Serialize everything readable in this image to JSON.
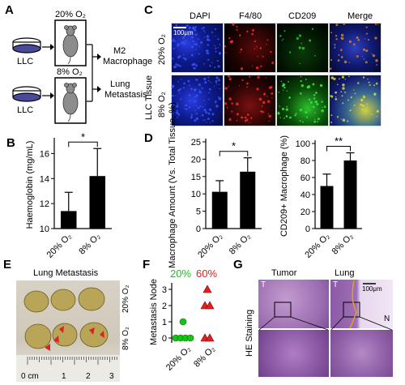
{
  "panels": {
    "A": {
      "letter": "A",
      "cell_label": "LLC",
      "o2_top": "20% O₂",
      "o2_bottom": "8% O₂",
      "outcome_top_line1": "M2",
      "outcome_top_line2": "Macrophage",
      "outcome_bottom_line1": "Lung",
      "outcome_bottom_line2": "Metastasis"
    },
    "B": {
      "letter": "B"
    },
    "C": {
      "letter": "C",
      "row_title": "LLC Tissue",
      "row_top": "20% O₂",
      "row_bottom": "8% O₂",
      "scale": "100μm",
      "channels": [
        {
          "name": "DAPI",
          "color": "#2b3ad6"
        },
        {
          "name": "F4/80",
          "color": "#e02020"
        },
        {
          "name": "CD209",
          "color": "#18a81a"
        },
        {
          "name": "Merge",
          "color": "#e7a02a"
        }
      ]
    },
    "D": {
      "letter": "D"
    },
    "E": {
      "letter": "E",
      "title": "Lung Metastasis",
      "row_top": "20% O₂",
      "row_bottom": "8% O₂",
      "ruler_labels": [
        "0 cm",
        "1",
        "2",
        "3"
      ]
    },
    "F": {
      "letter": "F",
      "label_20": "20%",
      "label_60": "60%",
      "color_20": "#19c219",
      "color_60": "#e02020"
    },
    "G": {
      "letter": "G",
      "col_tumor": "Tumor",
      "col_lung": "Lung",
      "side_label": "HE Staining",
      "scale": "100μm",
      "mark_T1": "T",
      "mark_T2": "T",
      "mark_N": "N"
    }
  },
  "chart_data": [
    {
      "id": "B",
      "type": "bar",
      "categories": [
        "20% O₂",
        "8% O₂"
      ],
      "values": [
        11.4,
        14.2
      ],
      "errors": [
        1.5,
        2.2
      ],
      "ylabel": "Haemoglobin (mg/mL)",
      "ylim": [
        10,
        17
      ],
      "yticks": [
        10,
        12,
        14,
        16
      ],
      "significance": "*"
    },
    {
      "id": "D1",
      "type": "bar",
      "categories": [
        "20% O₂",
        "8% O₂"
      ],
      "values": [
        10.6,
        16.4
      ],
      "errors": [
        3.2,
        4.0
      ],
      "ylabel": "Macrophage Amount (Vs. Total Tissue, %)",
      "ylim": [
        0,
        25
      ],
      "yticks": [
        0,
        5,
        10,
        15,
        20,
        25
      ],
      "significance": "*"
    },
    {
      "id": "D2",
      "type": "bar",
      "categories": [
        "20% O₂",
        "8% O₂"
      ],
      "values": [
        50,
        80
      ],
      "errors": [
        14,
        9
      ],
      "ylabel": "CD209+ Macrophage (%)",
      "ylim": [
        0,
        100
      ],
      "yticks": [
        0,
        20,
        40,
        60,
        80,
        100
      ],
      "significance": "**"
    },
    {
      "id": "F",
      "type": "scatter",
      "categories": [
        "20% O₂",
        "8% O₂"
      ],
      "ylabel": "Metastasis Node",
      "ylim": [
        0,
        3.2
      ],
      "yticks": [
        0,
        1,
        2,
        3
      ],
      "series": [
        {
          "values": [
            0,
            0,
            0,
            0,
            1
          ],
          "color": "#19c219",
          "marker": "circle"
        },
        {
          "values": [
            0,
            0,
            2,
            2,
            3
          ],
          "color": "#e02020",
          "marker": "triangle"
        }
      ]
    }
  ]
}
